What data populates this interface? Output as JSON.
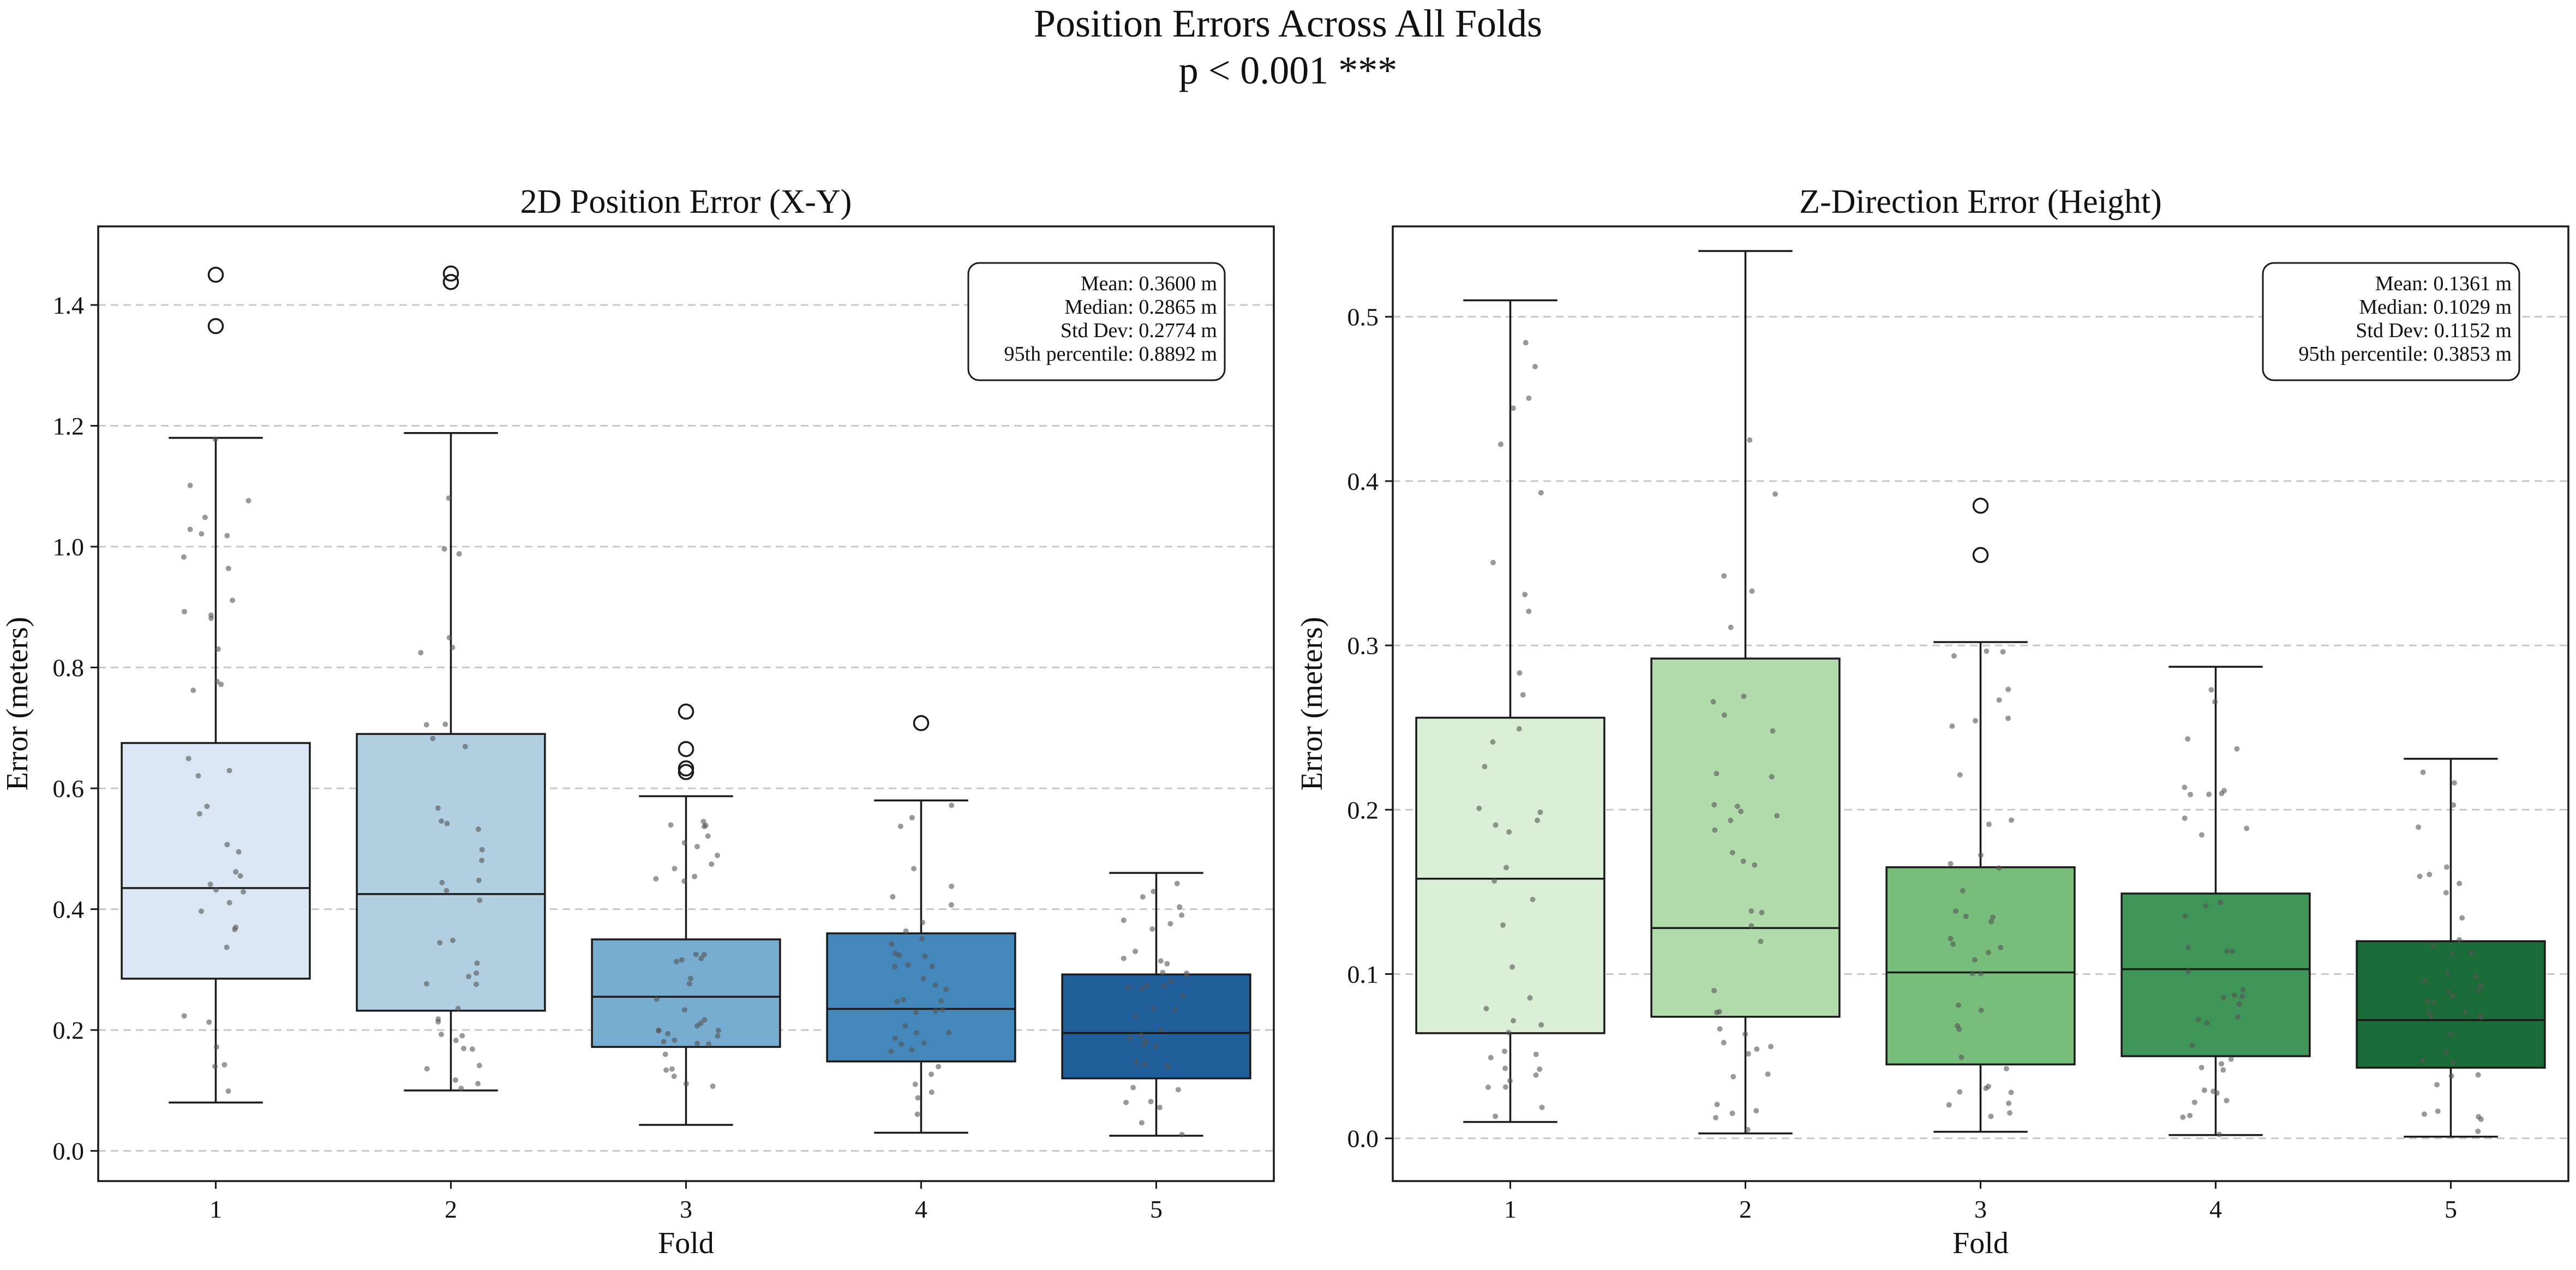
{
  "suptitle": {
    "line1": "Position Errors Across All Folds",
    "line2": "p < 0.001 ***"
  },
  "chart_data": [
    {
      "type": "box",
      "title": "2D Position Error (X-Y)",
      "xlabel": "Fold",
      "ylabel": "Error (meters)",
      "ylim": [
        -0.05,
        1.53
      ],
      "yticks": [
        0.0,
        0.2,
        0.4,
        0.6,
        0.8,
        1.0,
        1.2,
        1.4
      ],
      "ytick_labels": [
        "0.0",
        "0.2",
        "0.4",
        "0.6",
        "0.8",
        "1.0",
        "1.2",
        "1.4"
      ],
      "grid": "y-dashed",
      "categories": [
        "1",
        "2",
        "3",
        "4",
        "5"
      ],
      "colors": [
        "#dae6f3",
        "#b2cfe2",
        "#77abcf",
        "#4488bb",
        "#1f5d9b"
      ],
      "boxes": [
        {
          "whisker_low": 0.08,
          "q1": 0.285,
          "median": 0.435,
          "q3": 0.675,
          "whisker_high": 1.18,
          "outliers": [
            1.365,
            1.45
          ]
        },
        {
          "whisker_low": 0.1,
          "q1": 0.232,
          "median": 0.425,
          "q3": 0.69,
          "whisker_high": 1.188,
          "outliers": [
            1.438,
            1.452
          ]
        },
        {
          "whisker_low": 0.043,
          "q1": 0.172,
          "median": 0.255,
          "q3": 0.35,
          "whisker_high": 0.587,
          "outliers": [
            0.627,
            0.633,
            0.665,
            0.727
          ]
        },
        {
          "whisker_low": 0.03,
          "q1": 0.148,
          "median": 0.235,
          "q3": 0.36,
          "whisker_high": 0.58,
          "outliers": [
            0.708
          ]
        },
        {
          "whisker_low": 0.025,
          "q1": 0.12,
          "median": 0.195,
          "q3": 0.292,
          "whisker_high": 0.46,
          "outliers": []
        }
      ],
      "stats_box": {
        "legend_position": "top-right",
        "lines": [
          "Mean: 0.3600 m",
          "Median: 0.2865 m",
          "Std Dev: 0.2774 m",
          "95th percentile: 0.8892 m"
        ]
      }
    },
    {
      "type": "box",
      "title": "Z-Direction Error (Height)",
      "xlabel": "Fold",
      "ylabel": "Error (meters)",
      "ylim": [
        -0.026,
        0.555
      ],
      "yticks": [
        0.0,
        0.1,
        0.2,
        0.3,
        0.4,
        0.5
      ],
      "ytick_labels": [
        "0.0",
        "0.1",
        "0.2",
        "0.3",
        "0.4",
        "0.5"
      ],
      "grid": "y-dashed",
      "categories": [
        "1",
        "2",
        "3",
        "4",
        "5"
      ],
      "colors": [
        "#dbefd6",
        "#b1dbab",
        "#78bd7c",
        "#3f9558",
        "#1a6b37"
      ],
      "boxes": [
        {
          "whisker_low": 0.01,
          "q1": 0.064,
          "median": 0.158,
          "q3": 0.256,
          "whisker_high": 0.51,
          "outliers": []
        },
        {
          "whisker_low": 0.003,
          "q1": 0.074,
          "median": 0.128,
          "q3": 0.292,
          "whisker_high": 0.54,
          "outliers": []
        },
        {
          "whisker_low": 0.004,
          "q1": 0.045,
          "median": 0.101,
          "q3": 0.165,
          "whisker_high": 0.302,
          "outliers": [
            0.355,
            0.385
          ]
        },
        {
          "whisker_low": 0.002,
          "q1": 0.05,
          "median": 0.103,
          "q3": 0.149,
          "whisker_high": 0.287,
          "outliers": []
        },
        {
          "whisker_low": 0.001,
          "q1": 0.043,
          "median": 0.072,
          "q3": 0.12,
          "whisker_high": 0.231,
          "outliers": []
        }
      ],
      "stats_box": {
        "legend_position": "top-right",
        "lines": [
          "Mean: 0.1361 m",
          "Median: 0.1029 m",
          "Std Dev: 0.1152 m",
          "95th percentile: 0.3853 m"
        ]
      }
    }
  ]
}
